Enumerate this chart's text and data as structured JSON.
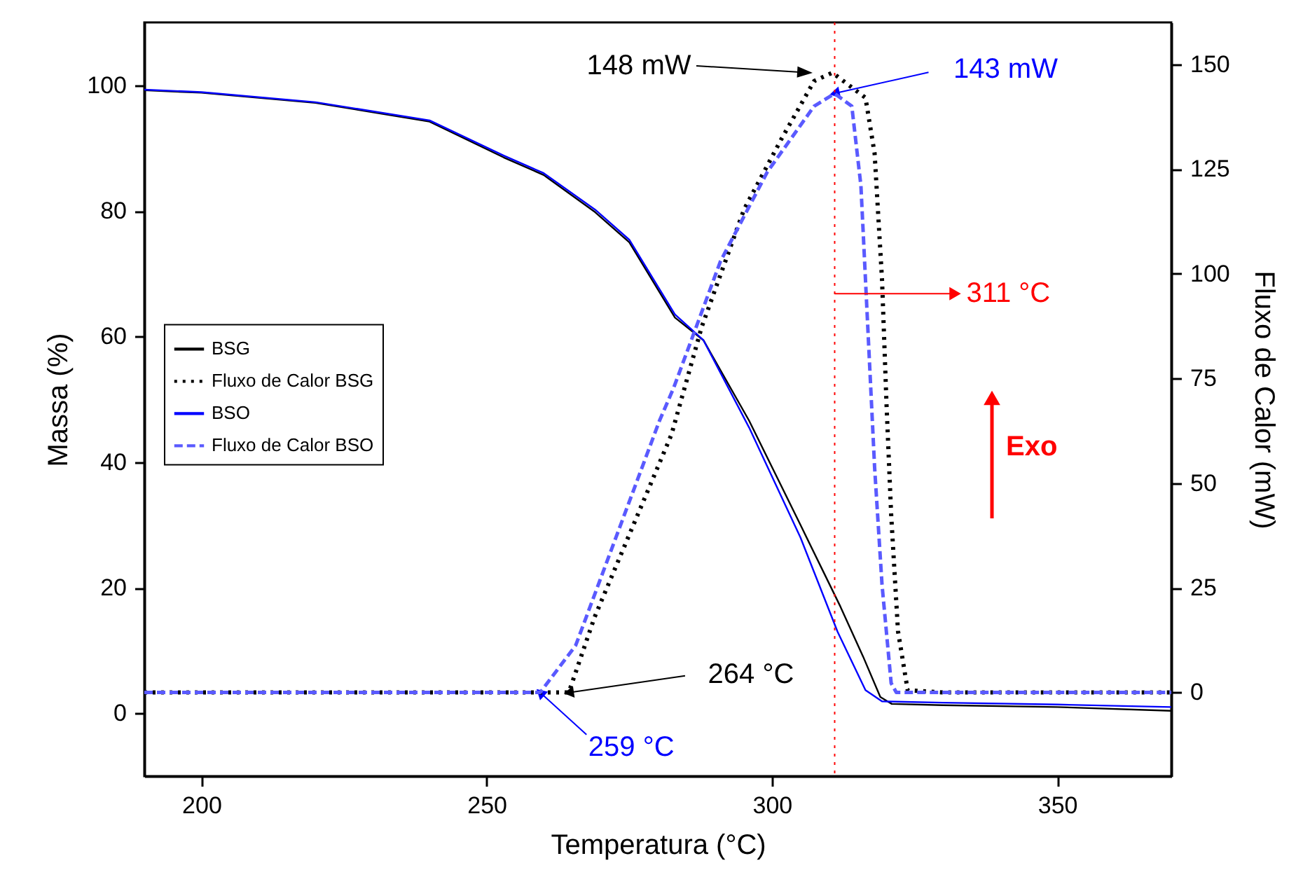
{
  "chart_data": {
    "type": "line",
    "xlabel": "Temperatura (°C)",
    "ylabel": "Massa (%)",
    "y2label": "Fluxo de Calor (mW)",
    "xlim": [
      190,
      370
    ],
    "xticks": [
      200,
      250,
      300,
      350
    ],
    "ylim": [
      -10,
      110
    ],
    "yticks": [
      0,
      20,
      40,
      60,
      80,
      100
    ],
    "y2lim": [
      -20,
      160
    ],
    "y2ticks": [
      0,
      25,
      50,
      75,
      100,
      125,
      150
    ],
    "legend": "left",
    "series": [
      {
        "name": "BSG",
        "color": "#000000",
        "line_style": "solid",
        "x": [
          190,
          200,
          220,
          240,
          253,
          260,
          269,
          275,
          283,
          288,
          296,
          305,
          312,
          316,
          319,
          321,
          330,
          350,
          370
        ],
        "values": [
          99.2,
          98.8,
          97.2,
          94.2,
          88.5,
          85.7,
          79.8,
          75,
          63,
          59.4,
          46.6,
          30,
          17,
          9,
          2.6,
          1.5,
          1.3,
          1.0,
          0.4
        ]
      },
      {
        "name": "Fluxo de Calor BSG",
        "color": "#000000",
        "line_style": "dotted",
        "axis": "y2",
        "x": [
          190,
          230,
          264.4,
          268.9,
          282.4,
          287.7,
          295.1,
          301.6,
          307.4,
          310.6,
          316.4,
          318,
          319.3,
          320.1,
          320.9,
          322.1,
          323.8,
          330,
          350,
          370
        ],
        "values": [
          0,
          0,
          0,
          17.9,
          61.6,
          87.3,
          115.3,
          132,
          146,
          148,
          142,
          128.7,
          98.5,
          68.3,
          42.5,
          14.6,
          0.5,
          0,
          0,
          0
        ]
      },
      {
        "name": "BSO",
        "color": "#0000ff",
        "line_style": "solid",
        "x": [
          190,
          200,
          220,
          240,
          253,
          260,
          269,
          275,
          283,
          288,
          296,
          305,
          311.5,
          316.4,
          319.3,
          330,
          350,
          370
        ],
        "values": [
          99.3,
          98.9,
          97.3,
          94.4,
          88.8,
          86,
          80.2,
          75.4,
          63.5,
          59.4,
          45.5,
          28,
          13,
          3.7,
          1.9,
          1.7,
          1.4,
          1.0
        ]
      },
      {
        "name": "Fluxo de Calor BSO",
        "color": "#5a5aff",
        "line_style": "dashed",
        "axis": "y2",
        "x": [
          190,
          230,
          259.4,
          265.6,
          280.3,
          282.8,
          291,
          299.2,
          307.4,
          311,
          314,
          315.6,
          316.8,
          318,
          319.3,
          320.9,
          321.8,
          330,
          350,
          370
        ],
        "values": [
          0,
          0,
          0,
          11.2,
          64.9,
          72.8,
          103,
          124.3,
          140,
          143,
          140,
          121,
          87.3,
          53.7,
          25.7,
          2.2,
          0,
          0,
          0,
          0
        ]
      }
    ],
    "ref_lines": [
      {
        "axis": "x",
        "value": 311,
        "label": "311 °C",
        "color": "#ff0000",
        "line_style": "dotted"
      }
    ],
    "annotations": [
      "148 mW",
      {
        "text": "143 mW",
        "x": 311,
        "y": 98.7
      },
      {
        "text": "264 °C",
        "x": 264.4,
        "y": 3.3
      },
      {
        "text": "259 °C",
        "x": 259.4,
        "y": 3.3
      },
      "Exo"
    ]
  }
}
